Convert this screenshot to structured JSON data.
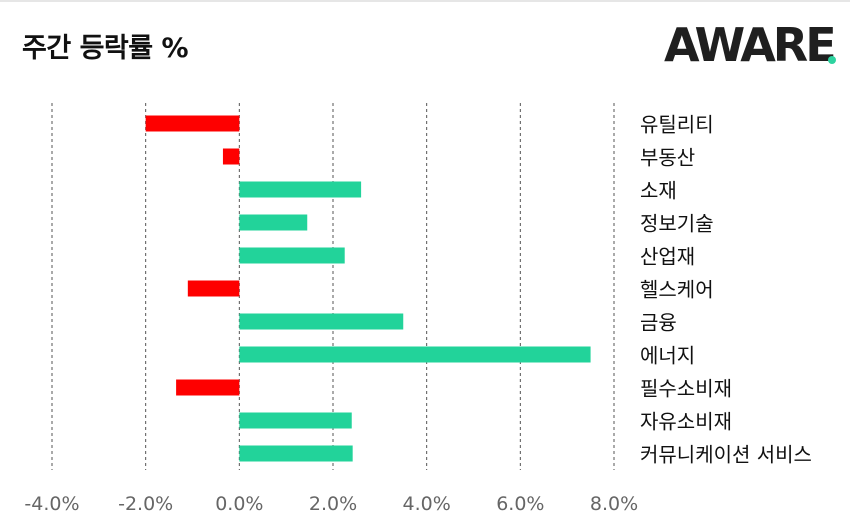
{
  "header": {
    "title": "주간 등락률 %",
    "logo_text": "AWARE"
  },
  "colors": {
    "positive": "#22d39a",
    "negative": "#fe0000",
    "grid": "#555555",
    "tick_text": "#666666",
    "label_text": "#111111",
    "logo_accent": "#2ed3a0"
  },
  "chart_data": {
    "type": "bar",
    "orientation": "horizontal",
    "categories": [
      "유틸리티",
      "부동산",
      "소재",
      "정보기술",
      "산업재",
      "헬스케어",
      "금융",
      "에너지",
      "필수소비재",
      "자유소비재",
      "커뮤니케이션 서비스"
    ],
    "values": [
      -2.0,
      -0.35,
      2.6,
      1.45,
      2.25,
      -1.1,
      3.5,
      7.5,
      -1.35,
      2.4,
      2.42
    ],
    "xlim": [
      -4.0,
      8.0
    ],
    "xticks": [
      "-4.0%",
      "-2.0%",
      "0.0%",
      "2.0%",
      "4.0%",
      "6.0%",
      "8.0%"
    ],
    "xtick_values": [
      -4,
      -2,
      0,
      2,
      4,
      6,
      8
    ],
    "grid": "vertical dashed",
    "legend": "none"
  }
}
